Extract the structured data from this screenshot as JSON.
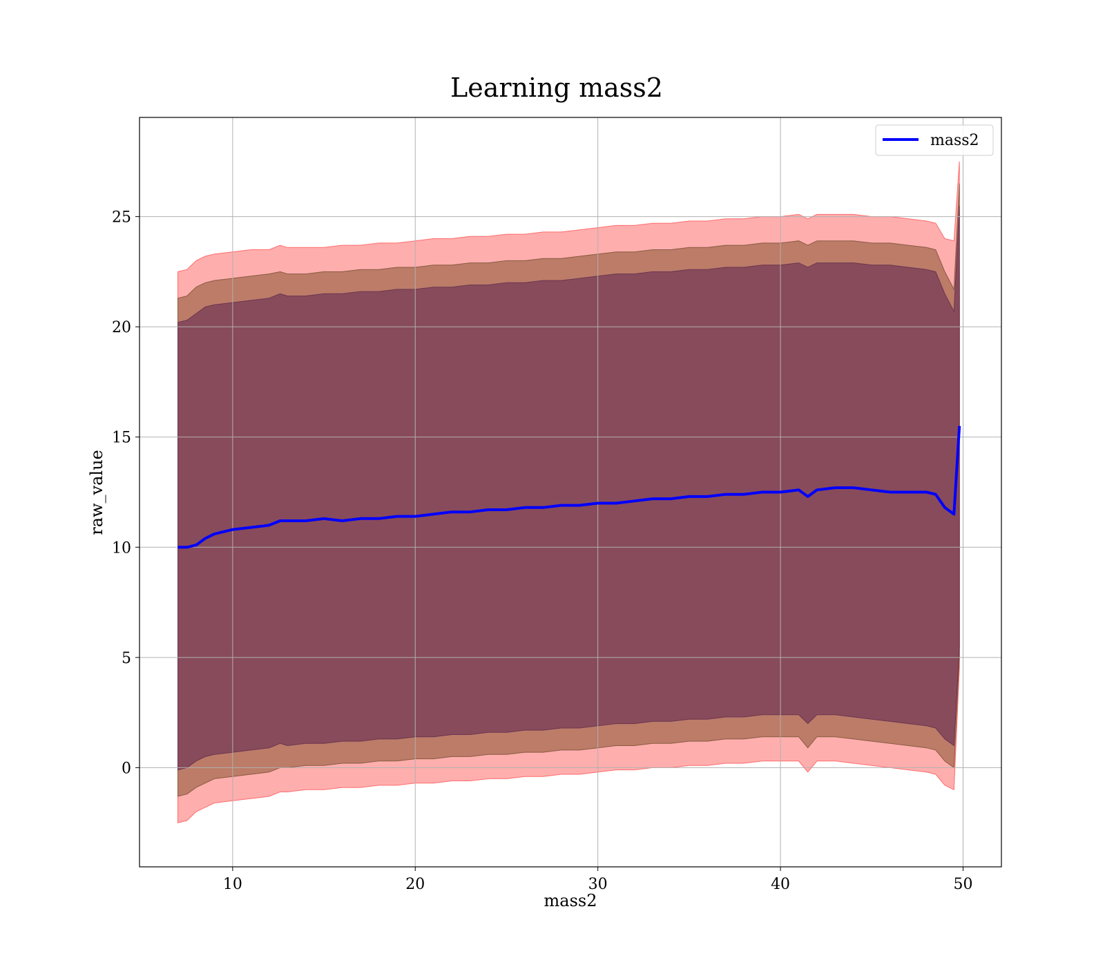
{
  "chart_data": {
    "type": "line",
    "title": "Learning mass2",
    "xlabel": "mass2",
    "ylabel": "raw_value",
    "xlim": [
      4.9,
      52.1
    ],
    "ylim": [
      -4.5,
      29.5
    ],
    "xticks": [
      10,
      20,
      30,
      40,
      50
    ],
    "yticks": [
      0,
      5,
      10,
      15,
      20,
      25
    ],
    "grid": true,
    "legend": {
      "position": "top-right",
      "entries": [
        "mass2"
      ]
    },
    "colors": {
      "line": "#0000ff",
      "band_outer": "#ff6b6b",
      "band_middle": "#a66b50",
      "band_inner": "#7a3f58",
      "grid": "#b0b0b0"
    },
    "series": [
      {
        "name": "mass2",
        "x": [
          7.0,
          7.5,
          8.0,
          8.5,
          9.0,
          10.0,
          11.0,
          12.0,
          12.6,
          13.0,
          14.0,
          15.0,
          16.0,
          17.0,
          18.0,
          19.0,
          20.0,
          21.0,
          22.0,
          23.0,
          24.0,
          25.0,
          26.0,
          27.0,
          28.0,
          29.0,
          30.0,
          31.0,
          32.0,
          33.0,
          34.0,
          35.0,
          36.0,
          37.0,
          38.0,
          39.0,
          40.0,
          41.0,
          41.5,
          42.0,
          43.0,
          44.0,
          45.0,
          46.0,
          47.0,
          48.0,
          48.5,
          49.0,
          49.5,
          49.8
        ],
        "y": [
          10.0,
          10.0,
          10.1,
          10.4,
          10.6,
          10.8,
          10.9,
          11.0,
          11.2,
          11.2,
          11.2,
          11.3,
          11.2,
          11.3,
          11.3,
          11.4,
          11.4,
          11.5,
          11.6,
          11.6,
          11.7,
          11.7,
          11.8,
          11.8,
          11.9,
          11.9,
          12.0,
          12.0,
          12.1,
          12.2,
          12.2,
          12.3,
          12.3,
          12.4,
          12.4,
          12.5,
          12.5,
          12.6,
          12.3,
          12.6,
          12.7,
          12.7,
          12.6,
          12.5,
          12.5,
          12.5,
          12.4,
          11.8,
          11.5,
          15.5
        ],
        "band_outer_low": [
          -2.5,
          -2.4,
          -2.0,
          -1.8,
          -1.6,
          -1.5,
          -1.4,
          -1.3,
          -1.1,
          -1.1,
          -1.0,
          -1.0,
          -0.9,
          -0.9,
          -0.8,
          -0.8,
          -0.7,
          -0.7,
          -0.6,
          -0.6,
          -0.5,
          -0.5,
          -0.4,
          -0.4,
          -0.3,
          -0.3,
          -0.2,
          -0.1,
          -0.1,
          0.0,
          0.0,
          0.1,
          0.1,
          0.2,
          0.2,
          0.3,
          0.3,
          0.3,
          -0.2,
          0.3,
          0.3,
          0.2,
          0.1,
          0.0,
          -0.1,
          -0.2,
          -0.3,
          -0.8,
          -1.0,
          4.5
        ],
        "band_outer_high": [
          22.5,
          22.6,
          23.0,
          23.2,
          23.3,
          23.4,
          23.5,
          23.5,
          23.7,
          23.6,
          23.6,
          23.6,
          23.7,
          23.7,
          23.8,
          23.8,
          23.9,
          24.0,
          24.0,
          24.1,
          24.1,
          24.2,
          24.2,
          24.3,
          24.3,
          24.4,
          24.5,
          24.6,
          24.6,
          24.7,
          24.7,
          24.8,
          24.8,
          24.9,
          24.9,
          25.0,
          25.0,
          25.1,
          24.9,
          25.1,
          25.1,
          25.1,
          25.0,
          25.0,
          24.9,
          24.8,
          24.7,
          24.0,
          23.9,
          27.5
        ],
        "band_middle_low": [
          -1.3,
          -1.2,
          -0.9,
          -0.7,
          -0.5,
          -0.4,
          -0.3,
          -0.2,
          0.0,
          0.0,
          0.1,
          0.1,
          0.2,
          0.2,
          0.3,
          0.3,
          0.4,
          0.4,
          0.5,
          0.5,
          0.6,
          0.6,
          0.7,
          0.7,
          0.8,
          0.8,
          0.9,
          1.0,
          1.0,
          1.1,
          1.1,
          1.2,
          1.2,
          1.3,
          1.3,
          1.4,
          1.4,
          1.4,
          0.9,
          1.4,
          1.4,
          1.3,
          1.2,
          1.1,
          1.0,
          0.9,
          0.8,
          0.3,
          0.0,
          5.0
        ],
        "band_middle_high": [
          21.3,
          21.4,
          21.8,
          22.0,
          22.1,
          22.2,
          22.3,
          22.4,
          22.5,
          22.4,
          22.4,
          22.5,
          22.5,
          22.6,
          22.6,
          22.7,
          22.7,
          22.8,
          22.8,
          22.9,
          22.9,
          23.0,
          23.0,
          23.1,
          23.1,
          23.2,
          23.3,
          23.4,
          23.4,
          23.5,
          23.5,
          23.6,
          23.6,
          23.7,
          23.7,
          23.8,
          23.8,
          23.9,
          23.7,
          23.9,
          23.9,
          23.9,
          23.8,
          23.8,
          23.7,
          23.6,
          23.5,
          22.5,
          21.7,
          26.5
        ],
        "band_inner_low": [
          -0.1,
          0.0,
          0.3,
          0.5,
          0.6,
          0.7,
          0.8,
          0.9,
          1.1,
          1.0,
          1.1,
          1.1,
          1.2,
          1.2,
          1.3,
          1.3,
          1.4,
          1.4,
          1.5,
          1.5,
          1.6,
          1.6,
          1.7,
          1.7,
          1.8,
          1.8,
          1.9,
          2.0,
          2.0,
          2.1,
          2.1,
          2.2,
          2.2,
          2.3,
          2.3,
          2.4,
          2.4,
          2.4,
          2.0,
          2.4,
          2.4,
          2.3,
          2.2,
          2.1,
          2.0,
          1.9,
          1.8,
          1.3,
          1.0,
          5.5
        ],
        "band_inner_high": [
          20.2,
          20.3,
          20.6,
          20.9,
          21.0,
          21.1,
          21.2,
          21.3,
          21.5,
          21.4,
          21.4,
          21.5,
          21.5,
          21.6,
          21.6,
          21.7,
          21.7,
          21.8,
          21.8,
          21.9,
          21.9,
          22.0,
          22.0,
          22.1,
          22.1,
          22.2,
          22.3,
          22.4,
          22.4,
          22.5,
          22.5,
          22.6,
          22.6,
          22.7,
          22.7,
          22.8,
          22.8,
          22.9,
          22.7,
          22.9,
          22.9,
          22.9,
          22.8,
          22.8,
          22.7,
          22.6,
          22.5,
          21.5,
          20.7,
          25.5
        ]
      }
    ]
  }
}
